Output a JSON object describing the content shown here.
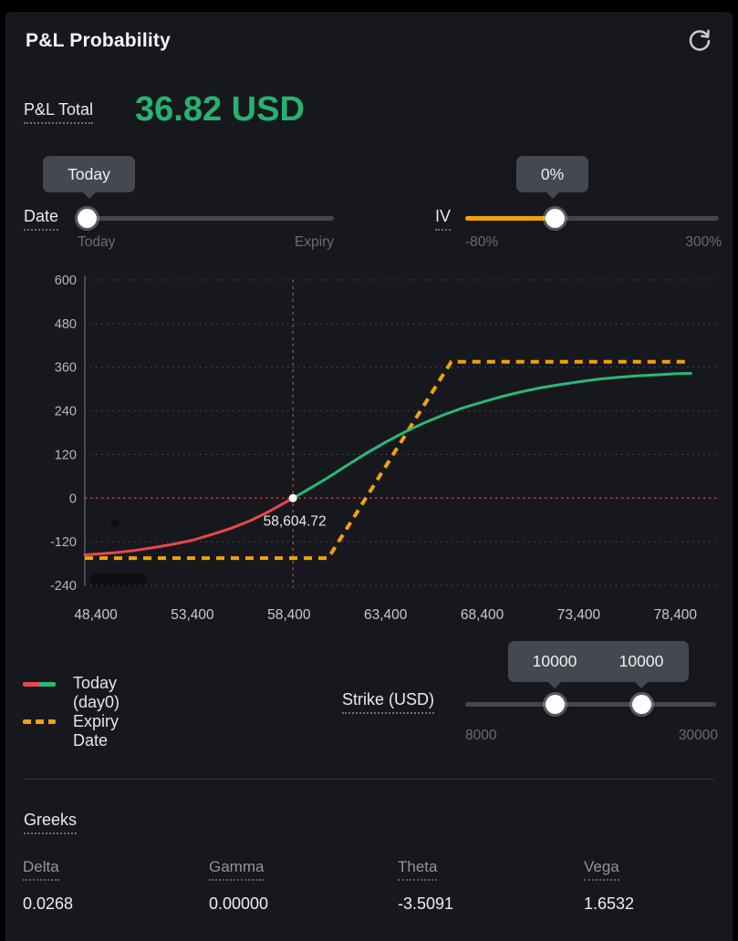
{
  "header": {
    "title": "P&L Probability"
  },
  "pnl": {
    "label": "P&L Total",
    "value": "36.82 USD"
  },
  "sliders": {
    "date": {
      "label": "Date",
      "tooltip": "Today",
      "min_label": "Today",
      "max_label": "Expiry"
    },
    "iv": {
      "label": "IV",
      "tooltip": "0%",
      "min_label": "-80%",
      "max_label": "300%"
    },
    "strike": {
      "label": "Strike (USD)",
      "tooltip_low": "10000",
      "tooltip_high": "10000",
      "min_label": "8000",
      "max_label": "30000"
    }
  },
  "legend": {
    "items": [
      {
        "label": "Today (day0)"
      },
      {
        "label": "Expiry Date"
      }
    ]
  },
  "greeks": {
    "title": "Greeks",
    "items": [
      {
        "label": "Delta",
        "value": "0.0268"
      },
      {
        "label": "Gamma",
        "value": "0.00000"
      },
      {
        "label": "Theta",
        "value": "-3.5091"
      },
      {
        "label": "Vega",
        "value": "1.6532"
      }
    ]
  },
  "colors": {
    "green": "#2bb976",
    "red": "#e8474d",
    "orange": "#f2a10c",
    "crosshair_red": "#cf4146",
    "panel_bg": "#17181d",
    "tooltip_bg": "#45484e",
    "track": "#44474e",
    "grid": "#4e5158",
    "pnl_green_text": "#27b271"
  },
  "chart_data": {
    "type": "line",
    "title": "P&L Probability",
    "xlabel": "",
    "ylabel": "",
    "grid": true,
    "legend_position": "bottom-left",
    "xlim": [
      47830,
      80650
    ],
    "ylim": [
      -275,
      635
    ],
    "xticks": [
      48400,
      53400,
      58400,
      63400,
      68400,
      73400,
      78400
    ],
    "xtick_labels": [
      "48,400",
      "53,400",
      "58,400",
      "63,400",
      "68,400",
      "73,400",
      "78,400"
    ],
    "yticks": [
      -240,
      -120,
      0,
      120,
      240,
      360,
      480,
      600
    ],
    "crosshair": {
      "x": 58604.72,
      "y": 0,
      "label": "58,604.72"
    },
    "series": [
      {
        "name": "Today (day0)",
        "style": "solid",
        "color_below_zero": "#e8474d",
        "color_above_zero": "#2bb976",
        "points": [
          [
            47830,
            -156
          ],
          [
            48400,
            -154
          ],
          [
            49400,
            -150
          ],
          [
            50400,
            -144
          ],
          [
            51400,
            -136
          ],
          [
            52400,
            -127
          ],
          [
            53400,
            -116
          ],
          [
            54400,
            -100
          ],
          [
            55400,
            -83
          ],
          [
            56400,
            -62
          ],
          [
            57400,
            -36
          ],
          [
            58400,
            -6
          ],
          [
            58604.72,
            0
          ],
          [
            59400,
            24
          ],
          [
            60400,
            56
          ],
          [
            61400,
            90
          ],
          [
            62400,
            123
          ],
          [
            63400,
            154
          ],
          [
            64400,
            182
          ],
          [
            65400,
            207
          ],
          [
            66400,
            229
          ],
          [
            67400,
            248
          ],
          [
            68400,
            264
          ],
          [
            69400,
            279
          ],
          [
            70400,
            292
          ],
          [
            71400,
            303
          ],
          [
            72400,
            312
          ],
          [
            73400,
            320
          ],
          [
            74400,
            327
          ],
          [
            75400,
            332
          ],
          [
            76400,
            336
          ],
          [
            77400,
            339
          ],
          [
            78400,
            342
          ],
          [
            79200,
            343
          ]
        ]
      },
      {
        "name": "Expiry Date",
        "style": "dashed",
        "color": "#f2a10c",
        "points": [
          [
            47830,
            -165
          ],
          [
            60430,
            -165
          ],
          [
            66800,
            375
          ],
          [
            79200,
            375
          ]
        ]
      }
    ]
  }
}
